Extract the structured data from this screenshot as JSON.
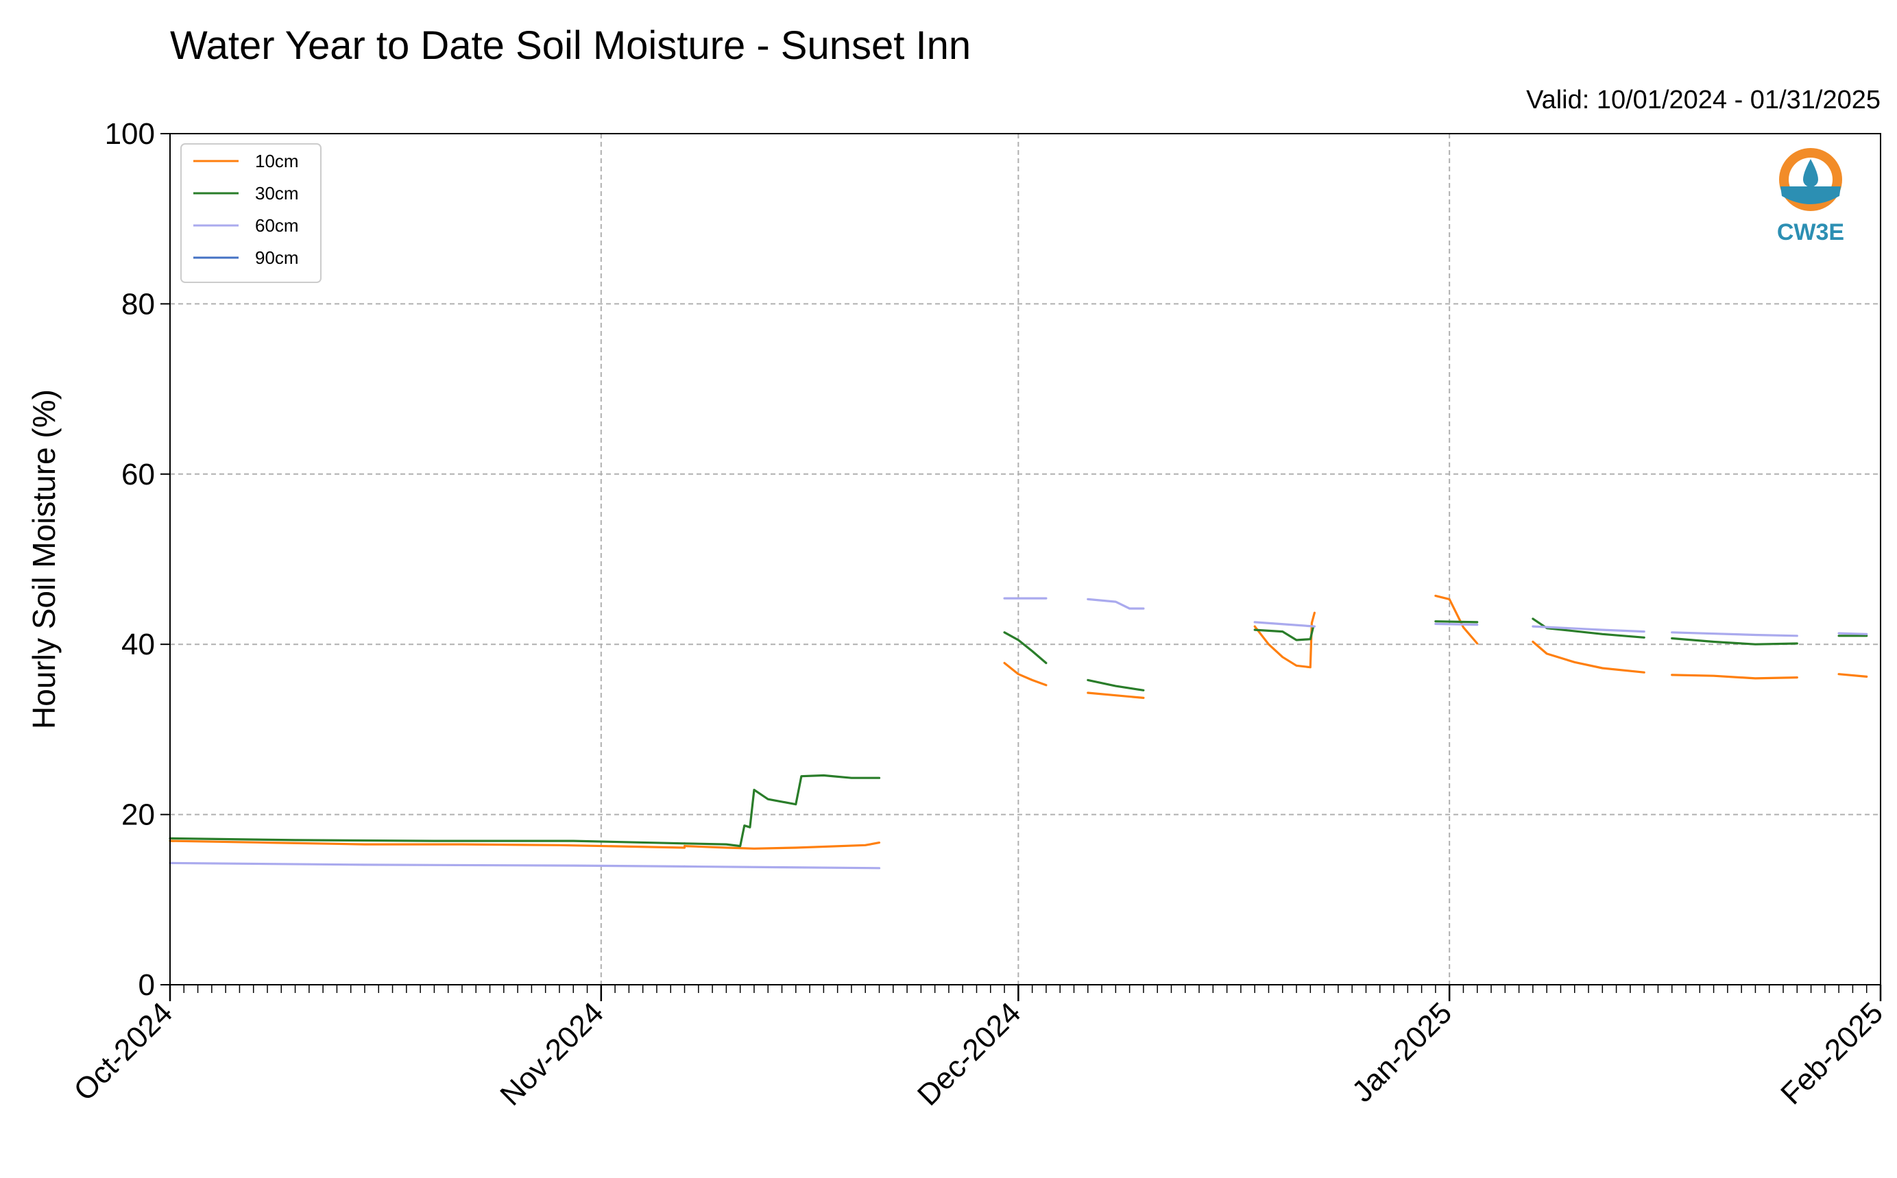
{
  "chart_data": {
    "type": "line",
    "title": "Water Year to Date Soil Moisture - Sunset Inn",
    "subtitle": "Valid: 10/01/2024 - 01/31/2025",
    "xlabel": "",
    "ylabel": "Hourly Soil Moisture (%)",
    "x_unit": "date",
    "xlim": [
      "2024-10-01",
      "2025-02-01"
    ],
    "ylim": [
      0,
      100
    ],
    "x_ticks": [
      {
        "date": "2024-10-01",
        "label": "Oct-2024"
      },
      {
        "date": "2024-11-01",
        "label": "Nov-2024"
      },
      {
        "date": "2024-12-01",
        "label": "Dec-2024"
      },
      {
        "date": "2025-01-01",
        "label": "Jan-2025"
      },
      {
        "date": "2025-02-01",
        "label": "Feb-2025"
      }
    ],
    "y_ticks": [
      0,
      20,
      40,
      60,
      80,
      100
    ],
    "grid": true,
    "legend_position": "top-left",
    "logo_text": "CW3E",
    "series": [
      {
        "name": "10cm",
        "color": "#ff7f0e",
        "segments": [
          [
            [
              "2024-10-01",
              16.9
            ],
            [
              "2024-10-08",
              16.7
            ],
            [
              "2024-10-15",
              16.5
            ],
            [
              "2024-10-22",
              16.5
            ],
            [
              "2024-10-29",
              16.4
            ],
            [
              "2024-11-07",
              16.1
            ]
          ],
          [
            [
              "2024-11-07",
              16.3
            ],
            [
              "2024-11-10",
              16.1
            ],
            [
              "2024-11-12",
              16.0
            ],
            [
              "2024-11-15",
              16.1
            ],
            [
              "2024-11-20",
              16.4
            ],
            [
              "2024-11-21",
              16.7
            ]
          ],
          [
            [
              "2024-11-30",
              37.8
            ],
            [
              "2024-12-01",
              36.5
            ],
            [
              "2024-12-02",
              35.8
            ],
            [
              "2024-12-03",
              35.2
            ]
          ],
          [
            [
              "2024-12-06",
              34.3
            ],
            [
              "2024-12-08",
              34.0
            ],
            [
              "2024-12-10",
              33.7
            ]
          ],
          [
            [
              "2024-12-18",
              42.1
            ],
            [
              "2024-12-19",
              40.0
            ],
            [
              "2024-12-20",
              38.5
            ],
            [
              "2024-12-21",
              37.5
            ],
            [
              "2024-12-22",
              37.3
            ],
            [
              "2024-12-22.1",
              42.5
            ],
            [
              "2024-12-22.3",
              43.7
            ]
          ],
          [
            [
              "2024-12-31",
              45.7
            ],
            [
              "2025-01-01",
              45.3
            ],
            [
              "2025-01-02",
              42.0
            ],
            [
              "2025-01-03",
              40.1
            ]
          ],
          [
            [
              "2025-01-07",
              40.3
            ],
            [
              "2025-01-08",
              38.9
            ],
            [
              "2025-01-10",
              37.9
            ],
            [
              "2025-01-12",
              37.2
            ],
            [
              "2025-01-15",
              36.7
            ]
          ],
          [
            [
              "2025-01-17",
              36.4
            ],
            [
              "2025-01-20",
              36.3
            ],
            [
              "2025-01-23",
              36.0
            ],
            [
              "2025-01-26",
              36.1
            ]
          ],
          [
            [
              "2025-01-29",
              36.5
            ],
            [
              "2025-01-31",
              36.2
            ]
          ]
        ]
      },
      {
        "name": "30cm",
        "color": "#2ca02c",
        "stroke": "#2a7d2a",
        "segments": [
          [
            [
              "2024-10-01",
              17.2
            ],
            [
              "2024-10-10",
              17.0
            ],
            [
              "2024-10-20",
              16.9
            ],
            [
              "2024-10-30",
              16.9
            ],
            [
              "2024-11-07",
              16.6
            ]
          ],
          [
            [
              "2024-11-07",
              16.6
            ],
            [
              "2024-11-10",
              16.5
            ],
            [
              "2024-11-11",
              16.3
            ],
            [
              "2024-11-11.3",
              18.7
            ],
            [
              "2024-11-11.7",
              18.5
            ],
            [
              "2024-11-12",
              22.9
            ],
            [
              "2024-11-13",
              21.8
            ],
            [
              "2024-11-15",
              21.2
            ],
            [
              "2024-11-15.4",
              24.5
            ],
            [
              "2024-11-17",
              24.6
            ],
            [
              "2024-11-19",
              24.3
            ],
            [
              "2024-11-21",
              24.3
            ]
          ],
          [
            [
              "2024-11-30",
              41.4
            ],
            [
              "2024-12-01",
              40.5
            ],
            [
              "2024-12-02",
              39.2
            ],
            [
              "2024-12-03",
              37.8
            ]
          ],
          [
            [
              "2024-12-06",
              35.8
            ],
            [
              "2024-12-08",
              35.1
            ],
            [
              "2024-12-10",
              34.6
            ]
          ],
          [
            [
              "2024-12-18",
              41.7
            ],
            [
              "2024-12-20",
              41.5
            ],
            [
              "2024-12-21",
              40.5
            ],
            [
              "2024-12-22",
              40.6
            ],
            [
              "2024-12-22.2",
              42.0
            ]
          ],
          [
            [
              "2024-12-31",
              42.7
            ],
            [
              "2025-01-03",
              42.6
            ]
          ],
          [
            [
              "2025-01-07",
              43.0
            ],
            [
              "2025-01-08",
              41.9
            ],
            [
              "2025-01-12",
              41.2
            ],
            [
              "2025-01-15",
              40.8
            ]
          ],
          [
            [
              "2025-01-17",
              40.7
            ],
            [
              "2025-01-20",
              40.3
            ],
            [
              "2025-01-23",
              40.0
            ],
            [
              "2025-01-26",
              40.1
            ]
          ],
          [
            [
              "2025-01-29",
              41.0
            ],
            [
              "2025-01-31",
              41.0
            ]
          ]
        ]
      },
      {
        "name": "60cm",
        "color": "#aaaaee",
        "segments": [
          [
            [
              "2024-10-01",
              14.3
            ],
            [
              "2024-10-15",
              14.1
            ],
            [
              "2024-10-30",
              14.0
            ],
            [
              "2024-11-07",
              13.9
            ]
          ],
          [
            [
              "2024-11-07",
              13.9
            ],
            [
              "2024-11-14",
              13.8
            ],
            [
              "2024-11-21",
              13.7
            ]
          ],
          [
            [
              "2024-11-30",
              45.4
            ],
            [
              "2024-12-03",
              45.4
            ]
          ],
          [
            [
              "2024-12-06",
              45.3
            ],
            [
              "2024-12-08",
              45.0
            ],
            [
              "2024-12-09",
              44.2
            ],
            [
              "2024-12-10",
              44.2
            ]
          ],
          [
            [
              "2024-12-18",
              42.6
            ],
            [
              "2024-12-22.3",
              42.1
            ]
          ],
          [
            [
              "2024-12-31",
              42.4
            ],
            [
              "2025-01-03",
              42.3
            ]
          ],
          [
            [
              "2025-01-07",
              42.1
            ],
            [
              "2025-01-12",
              41.7
            ],
            [
              "2025-01-15",
              41.5
            ]
          ],
          [
            [
              "2025-01-17",
              41.4
            ],
            [
              "2025-01-23",
              41.1
            ],
            [
              "2025-01-26",
              41.0
            ]
          ],
          [
            [
              "2025-01-29",
              41.3
            ],
            [
              "2025-01-31",
              41.2
            ]
          ]
        ]
      },
      {
        "name": "90cm",
        "color": "#4472c4",
        "segments": []
      }
    ]
  }
}
